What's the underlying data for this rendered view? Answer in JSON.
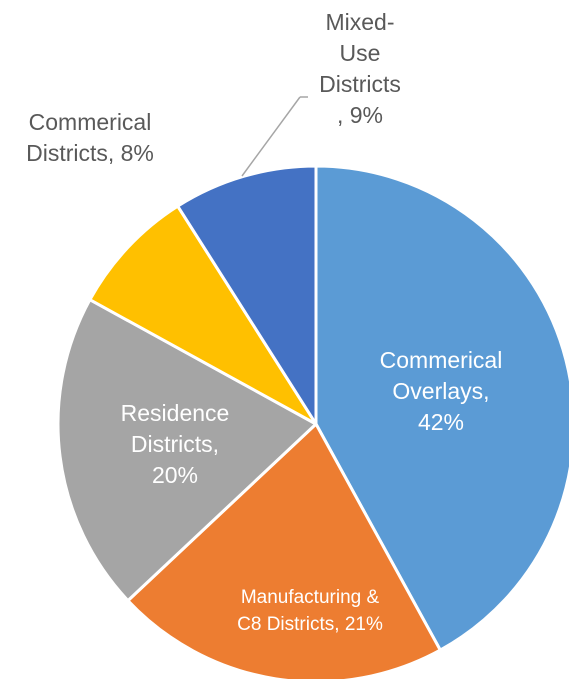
{
  "chart_data": {
    "type": "pie",
    "title": "",
    "slices": [
      {
        "name": "Commerical Overlays",
        "value": 42,
        "label_lines": [
          "Commerical",
          "Overlays,",
          "42%"
        ],
        "color": "#5b9bd5",
        "text_color": "#ffffff"
      },
      {
        "name": "Manufacturing & C8 Districts",
        "value": 21,
        "label_lines": [
          "Manufacturing &",
          "C8 Districts, 21%"
        ],
        "color": "#ed7d31",
        "text_color": "#ffffff"
      },
      {
        "name": "Residence Districts",
        "value": 20,
        "label_lines": [
          "Residence",
          "Districts,",
          "20%"
        ],
        "color": "#a5a5a5",
        "text_color": "#ffffff"
      },
      {
        "name": "Commerical Districts",
        "value": 8,
        "label_lines": [
          "Commerical",
          "Districts, 8%"
        ],
        "color": "#ffc000",
        "text_color": "#595959"
      },
      {
        "name": "Mixed-Use Districts",
        "value": 9,
        "label_lines": [
          "Mixed-",
          "Use",
          "Districts",
          ", 9%"
        ],
        "color": "#4472c4",
        "text_color": "#595959"
      }
    ]
  }
}
